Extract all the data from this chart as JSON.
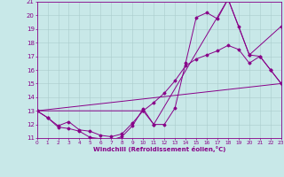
{
  "xlabel": "Windchill (Refroidissement éolien,°C)",
  "bg_color": "#c8e8e8",
  "line_color": "#880088",
  "grid_color": "#aacccc",
  "xlim": [
    0,
    23
  ],
  "ylim": [
    11,
    21
  ],
  "xticks": [
    0,
    1,
    2,
    3,
    4,
    5,
    6,
    7,
    8,
    9,
    10,
    11,
    12,
    13,
    14,
    15,
    16,
    17,
    18,
    19,
    20,
    21,
    22,
    23
  ],
  "yticks": [
    11,
    12,
    13,
    14,
    15,
    16,
    17,
    18,
    19,
    20,
    21
  ],
  "line1_x": [
    0,
    1,
    2,
    3,
    4,
    5,
    6,
    7,
    8,
    9,
    10,
    11,
    12,
    13,
    14,
    15,
    16,
    17,
    18,
    19,
    20,
    21,
    22,
    23
  ],
  "line1_y": [
    13.0,
    12.5,
    11.8,
    11.7,
    11.5,
    11.05,
    10.95,
    10.85,
    11.1,
    11.9,
    13.15,
    12.0,
    12.0,
    13.2,
    16.5,
    19.85,
    20.2,
    19.75,
    21.2,
    19.2,
    17.1,
    17.0,
    16.0,
    15.0
  ],
  "line2_x": [
    0,
    1,
    2,
    3,
    4,
    5,
    6,
    7,
    8,
    9,
    10,
    11,
    12,
    13,
    14,
    15,
    16,
    17,
    18,
    19,
    20,
    21,
    22,
    23
  ],
  "line2_y": [
    13.0,
    12.5,
    11.9,
    12.2,
    11.6,
    11.5,
    11.2,
    11.1,
    11.3,
    12.1,
    13.0,
    13.6,
    14.3,
    15.2,
    16.3,
    16.8,
    17.1,
    17.4,
    17.8,
    17.5,
    16.5,
    17.0,
    16.0,
    15.0
  ],
  "line3_x": [
    0,
    23
  ],
  "line3_y": [
    13.0,
    15.0
  ],
  "line4_x": [
    0,
    10,
    11,
    18,
    20,
    23
  ],
  "line4_y": [
    13.0,
    13.0,
    12.0,
    21.2,
    17.1,
    19.2
  ]
}
